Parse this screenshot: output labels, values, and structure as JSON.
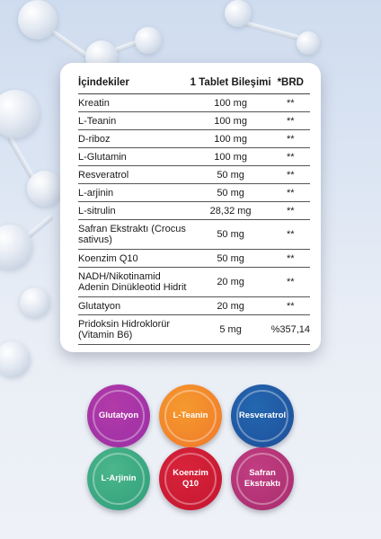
{
  "table": {
    "headers": [
      "İçindekiler",
      "1 Tablet Bileşimi",
      "*BRD"
    ],
    "rows": [
      {
        "name": "Kreatin",
        "amount": "100 mg",
        "brd": "**"
      },
      {
        "name": "L-Teanin",
        "amount": "100 mg",
        "brd": "**"
      },
      {
        "name": "D-riboz",
        "amount": "100 mg",
        "brd": "**"
      },
      {
        "name": "L-Glutamin",
        "amount": "100 mg",
        "brd": "**"
      },
      {
        "name": "Resveratrol",
        "amount": "50 mg",
        "brd": "**"
      },
      {
        "name": "L-arjinin",
        "amount": "50 mg",
        "brd": "**"
      },
      {
        "name": "L-sitrulin",
        "amount": "28,32 mg",
        "brd": "**"
      },
      {
        "name": "Safran Ekstraktı (Crocus sativus)",
        "amount": "50 mg",
        "brd": "**"
      },
      {
        "name": "Koenzim Q10",
        "amount": "50 mg",
        "brd": "**"
      },
      {
        "name": "NADH/Nikotinamid Adenin Dinükleotid Hidrit",
        "amount": "20 mg",
        "brd": "**"
      },
      {
        "name": "Glutatyon",
        "amount": "20 mg",
        "brd": "**"
      },
      {
        "name": "Pridoksin Hidroklorür (Vitamin B6)",
        "amount": "5 mg",
        "brd": "%357,14"
      }
    ]
  },
  "badges": [
    {
      "label": "Glutatyon",
      "color_outer": "#9b2fa6",
      "color_inner": "#b23aa8"
    },
    {
      "label": "L-Teanin",
      "color_outer": "#f0782a",
      "color_inner": "#f59a2e"
    },
    {
      "label": "Resveratrol",
      "color_outer": "#1f4f9a",
      "color_inner": "#2367b0"
    },
    {
      "label": "L-Arjinin",
      "color_outer": "#2e9e7a",
      "color_inner": "#4cb68c"
    },
    {
      "label": "Koenzim Q10",
      "color_outer": "#c4152f",
      "color_inner": "#d8243b"
    },
    {
      "label": "Safran Ekstraktı",
      "color_outer": "#a72c6e",
      "color_inner": "#c23d82"
    }
  ]
}
